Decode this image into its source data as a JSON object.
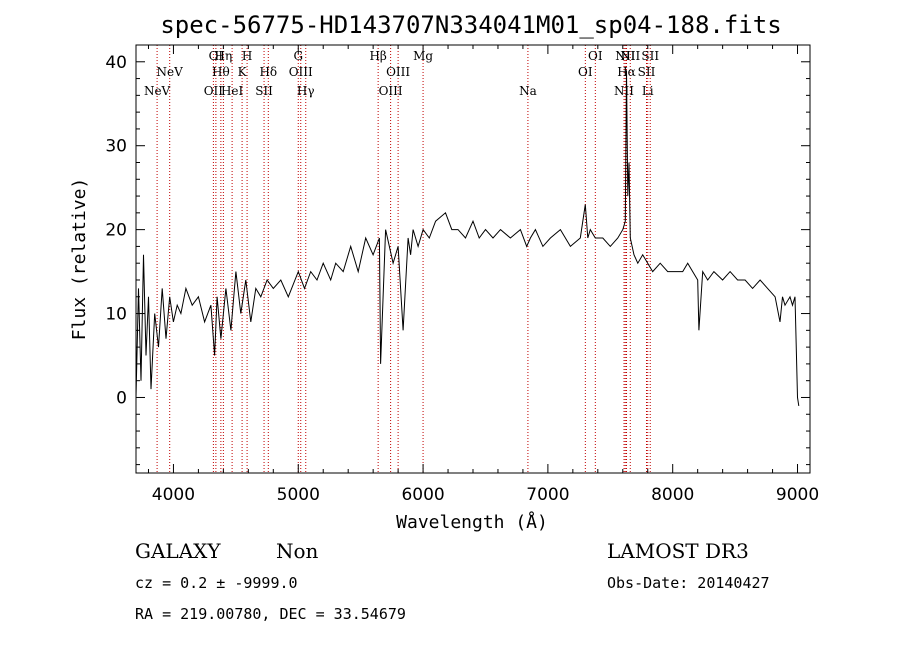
{
  "chart_data": {
    "type": "line",
    "title": "spec-56775-HD143707N334041M01_sp04-188.fits",
    "xlabel": "Wavelength (Å)",
    "ylabel": "Flux (relative)",
    "xlim": [
      3700,
      9100
    ],
    "ylim": [
      -9,
      42
    ],
    "xticks": [
      4000,
      5000,
      6000,
      7000,
      8000,
      9000
    ],
    "yticks": [
      0,
      10,
      20,
      30,
      40
    ],
    "series": [
      {
        "name": "flux",
        "x": [
          3700,
          3720,
          3740,
          3760,
          3780,
          3800,
          3820,
          3850,
          3880,
          3910,
          3940,
          3970,
          4000,
          4030,
          4060,
          4100,
          4150,
          4200,
          4250,
          4300,
          4330,
          4350,
          4380,
          4420,
          4460,
          4500,
          4540,
          4580,
          4620,
          4660,
          4700,
          4750,
          4800,
          4860,
          4920,
          5000,
          5050,
          5100,
          5150,
          5200,
          5260,
          5300,
          5360,
          5420,
          5480,
          5540,
          5600,
          5650,
          5660,
          5700,
          5760,
          5800,
          5840,
          5880,
          5900,
          5920,
          5960,
          6000,
          6050,
          6100,
          6180,
          6230,
          6280,
          6340,
          6400,
          6450,
          6500,
          6560,
          6620,
          6700,
          6780,
          6830,
          6860,
          6900,
          6960,
          7020,
          7100,
          7180,
          7260,
          7300,
          7320,
          7340,
          7380,
          7440,
          7500,
          7560,
          7600,
          7620,
          7630,
          7640,
          7650,
          7660,
          7690,
          7720,
          7760,
          7800,
          7840,
          7900,
          7960,
          8020,
          8080,
          8120,
          8160,
          8200,
          8210,
          8240,
          8280,
          8330,
          8400,
          8460,
          8520,
          8580,
          8640,
          8700,
          8760,
          8820,
          8860,
          8880,
          8900,
          8940,
          8960,
          8980,
          9000,
          9010
        ],
        "values": [
          0,
          13,
          2,
          17,
          5,
          12,
          1,
          10,
          6,
          13,
          7,
          12,
          9,
          11,
          10,
          13,
          11,
          12,
          9,
          11,
          5,
          12,
          7,
          13,
          8,
          15,
          10,
          14,
          9,
          13,
          12,
          14,
          13,
          14,
          12,
          15,
          13,
          15,
          14,
          16,
          14,
          16,
          15,
          18,
          15,
          19,
          17,
          19,
          4,
          20,
          16,
          18,
          8,
          19,
          17,
          20,
          18,
          20,
          19,
          21,
          22,
          20,
          20,
          19,
          21,
          19,
          20,
          19,
          20,
          19,
          20,
          18,
          19,
          20,
          18,
          19,
          20,
          18,
          19,
          23,
          19,
          20,
          19,
          19,
          18,
          19,
          20,
          21,
          39,
          24,
          28,
          19,
          17,
          16,
          17,
          16,
          15,
          16,
          15,
          15,
          15,
          16,
          15,
          14,
          8,
          15,
          14,
          15,
          14,
          15,
          14,
          14,
          13,
          14,
          13,
          12,
          9,
          12,
          11,
          12,
          11,
          12,
          0,
          -1
        ]
      }
    ],
    "lines": [
      {
        "name": "NeV",
        "wl": 3869,
        "row": 3
      },
      {
        "name": "NeV",
        "wl": 3970,
        "row": 2
      },
      {
        "name": "OII",
        "wl": 4320,
        "row": 3
      },
      {
        "name": "OI",
        "wl": 4340,
        "row": 1
      },
      {
        "name": "Hθ",
        "wl": 4380,
        "row": 2
      },
      {
        "name": "Hη",
        "wl": 4400,
        "row": 1
      },
      {
        "name": "HeI",
        "wl": 4470,
        "row": 3
      },
      {
        "name": "K",
        "wl": 4550,
        "row": 2
      },
      {
        "name": "H",
        "wl": 4590,
        "row": 1
      },
      {
        "name": "SII",
        "wl": 4726,
        "row": 3
      },
      {
        "name": "Hδ",
        "wl": 4760,
        "row": 2
      },
      {
        "name": "G",
        "wl": 5000,
        "row": 1
      },
      {
        "name": "OIII",
        "wl": 5020,
        "row": 2
      },
      {
        "name": "Hγ",
        "wl": 5060,
        "row": 3
      },
      {
        "name": "Hβ",
        "wl": 5640,
        "row": 1
      },
      {
        "name": "OIII",
        "wl": 5740,
        "row": 3
      },
      {
        "name": "OIII",
        "wl": 5800,
        "row": 2
      },
      {
        "name": "Mg",
        "wl": 6000,
        "row": 1
      },
      {
        "name": "Na",
        "wl": 6840,
        "row": 3
      },
      {
        "name": "OI",
        "wl": 7300,
        "row": 2
      },
      {
        "name": "OI",
        "wl": 7380,
        "row": 1
      },
      {
        "name": "NII",
        "wl": 7610,
        "row": 3
      },
      {
        "name": "NII",
        "wl": 7620,
        "row": 1
      },
      {
        "name": "Hα",
        "wl": 7630,
        "row": 2
      },
      {
        "name": "NII",
        "wl": 7660,
        "row": 1
      },
      {
        "name": "Li",
        "wl": 7800,
        "row": 3
      },
      {
        "name": "SII",
        "wl": 7790,
        "row": 2
      },
      {
        "name": "SII",
        "wl": 7820,
        "row": 1
      }
    ],
    "line_color": "#c00000"
  },
  "info": {
    "class": "GALAXY",
    "subclass": "Non",
    "survey": "LAMOST DR3",
    "cz": "cz = 0.2 ± -9999.0",
    "obs_date": "Obs-Date: 20140427",
    "coords": "RA = 219.00780, DEC =  33.54679"
  }
}
